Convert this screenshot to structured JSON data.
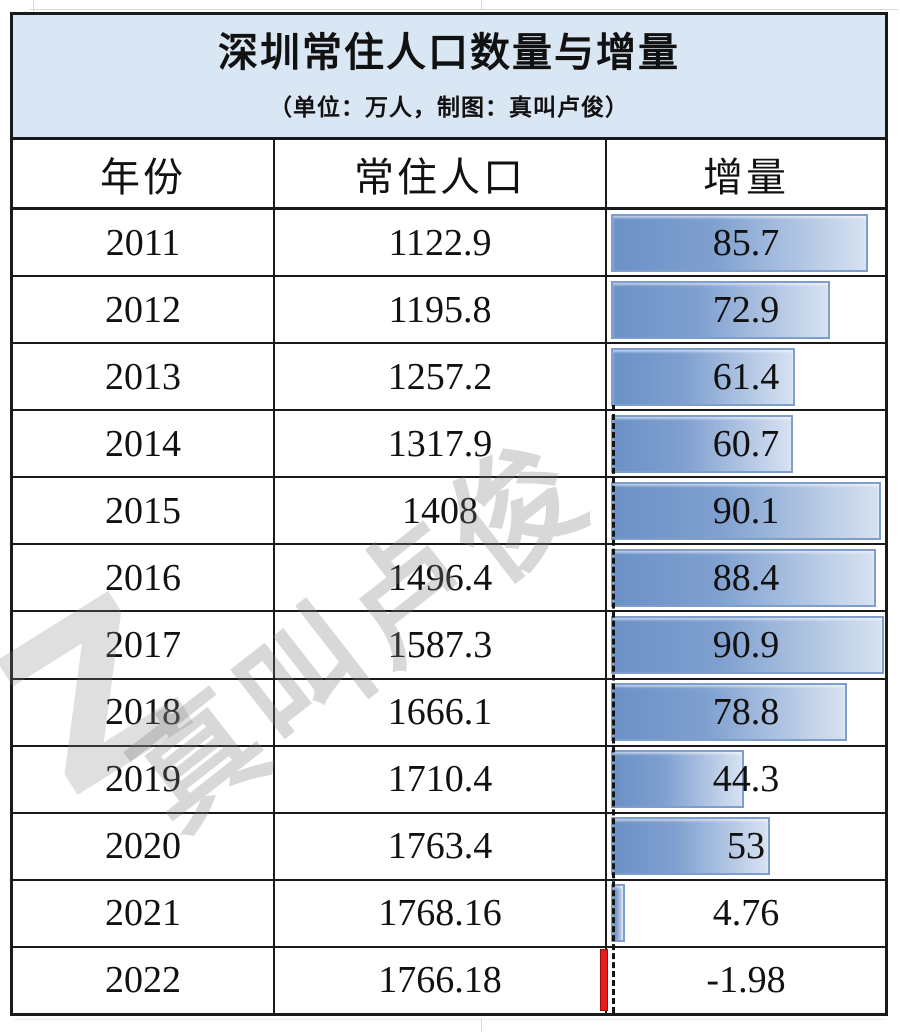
{
  "table": {
    "title": "深圳常住人口数量与增量",
    "subtitle": "（单位：万人，制图：真叫卢俊）",
    "columns": [
      "年份",
      "常住人口",
      "增量"
    ],
    "rows": [
      {
        "year": "2011",
        "population": "1122.9",
        "increment": "85.7",
        "increment_value": 85.7
      },
      {
        "year": "2012",
        "population": "1195.8",
        "increment": "72.9",
        "increment_value": 72.9
      },
      {
        "year": "2013",
        "population": "1257.2",
        "increment": "61.4",
        "increment_value": 61.4
      },
      {
        "year": "2014",
        "population": "1317.9",
        "increment": "60.7",
        "increment_value": 60.7
      },
      {
        "year": "2015",
        "population": "1408",
        "increment": "90.1",
        "increment_value": 90.1
      },
      {
        "year": "2016",
        "population": "1496.4",
        "increment": "88.4",
        "increment_value": 88.4
      },
      {
        "year": "2017",
        "population": "1587.3",
        "increment": "90.9",
        "increment_value": 90.9
      },
      {
        "year": "2018",
        "population": "1666.1",
        "increment": "78.8",
        "increment_value": 78.8
      },
      {
        "year": "2019",
        "population": "1710.4",
        "increment": "44.3",
        "increment_value": 44.3
      },
      {
        "year": "2020",
        "population": "1763.4",
        "increment": "53",
        "increment_value": 53
      },
      {
        "year": "2021",
        "population": "1768.16",
        "increment": "4.76",
        "increment_value": 4.76
      },
      {
        "year": "2022",
        "population": "1766.18",
        "increment": "-1.98",
        "increment_value": -1.98
      }
    ]
  },
  "watermark": {
    "text": "真叫卢俊",
    "logo_glyph": "Z"
  },
  "colors": {
    "header_background": "#d9e6f3",
    "table_border": "#1a1a1a",
    "bar_fill_start": "#6b91c7",
    "bar_fill_end": "#d7e2f1",
    "bar_border": "#7f9ecb",
    "negative_bar": "#ea1d1b"
  },
  "chart_data": {
    "type": "table",
    "title": "深圳常住人口数量与增量",
    "subtitle": "（单位：万人，制图：真叫卢俊）",
    "unit": "万人",
    "columns": [
      "年份",
      "常住人口",
      "增量"
    ],
    "categories": [
      "2011",
      "2012",
      "2013",
      "2014",
      "2015",
      "2016",
      "2017",
      "2018",
      "2019",
      "2020",
      "2021",
      "2022"
    ],
    "series": [
      {
        "name": "常住人口",
        "values": [
          1122.9,
          1195.8,
          1257.2,
          1317.9,
          1408,
          1496.4,
          1587.3,
          1666.1,
          1710.4,
          1763.4,
          1768.16,
          1766.18
        ]
      },
      {
        "name": "增量",
        "values": [
          85.7,
          72.9,
          61.4,
          60.7,
          90.1,
          88.4,
          90.9,
          78.8,
          44.3,
          53,
          4.76,
          -1.98
        ]
      }
    ],
    "bar_column": "增量",
    "bar_axis": {
      "min": -2,
      "max": 92,
      "zero_line": "dashed"
    },
    "bar_style": {
      "positive": "blue-gradient",
      "negative": "red"
    }
  }
}
